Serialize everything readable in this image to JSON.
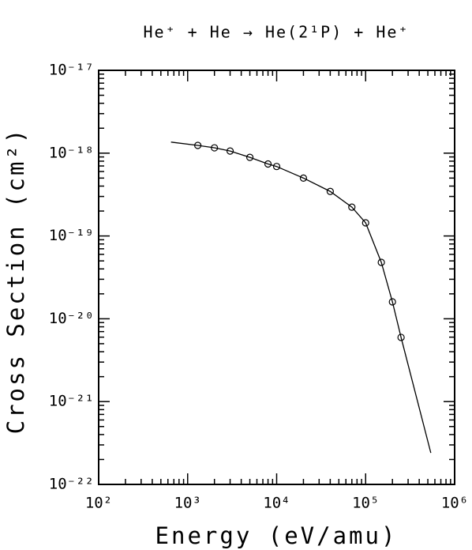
{
  "chart_data": {
    "type": "line",
    "title": "He⁺ + He → He(2¹P) + He⁺",
    "x_label": "Energy (eV/amu)",
    "y_label": "Cross Section (cm²)",
    "log_x": true,
    "log_y": true,
    "minor_ticks": true,
    "xlim": [
      100,
      1000000
    ],
    "ylim": [
      1e-22,
      1e-17
    ],
    "xticks": [
      {
        "value": 100,
        "label": "10²"
      },
      {
        "value": 1000,
        "label": "10³"
      },
      {
        "value": 10000,
        "label": "10⁴"
      },
      {
        "value": 100000,
        "label": "10⁵"
      },
      {
        "value": 1000000,
        "label": "10⁶"
      }
    ],
    "yticks": [
      {
        "value": 1e-22,
        "label": "10⁻²²"
      },
      {
        "value": 1e-21,
        "label": "10⁻²¹"
      },
      {
        "value": 1e-20,
        "label": "10⁻²⁰"
      },
      {
        "value": 1e-19,
        "label": "10⁻¹⁹"
      },
      {
        "value": 1e-18,
        "label": "10⁻¹⁸"
      },
      {
        "value": 1e-17,
        "label": "10⁻¹⁷"
      }
    ],
    "series": [
      {
        "color": "#000000",
        "marker": "none",
        "x": [
          650,
          1300,
          2000,
          3000,
          5000,
          8000,
          10000,
          20000,
          40000,
          70000,
          100000,
          150000,
          200000,
          250000,
          540000
        ],
        "values": [
          1.36e-18,
          1.24e-18,
          1.16e-18,
          1.06e-18,
          8.9e-19,
          7.4e-19,
          6.9e-19,
          5e-19,
          3.45e-19,
          2.23e-19,
          1.44e-19,
          4.8e-20,
          1.6e-20,
          5.96e-21,
          2.4e-22
        ]
      },
      {
        "color": "#000000",
        "marker": "circle",
        "x": [
          1300,
          2000,
          3000,
          5000,
          8000,
          10000,
          20000,
          40000,
          70000,
          100000,
          150000,
          200000,
          250000
        ],
        "values": [
          1.24e-18,
          1.16e-18,
          1.06e-18,
          8.9e-19,
          7.4e-19,
          6.9e-19,
          5e-19,
          3.45e-19,
          2.23e-19,
          1.44e-19,
          4.8e-20,
          1.6e-20,
          5.96e-21
        ]
      }
    ]
  }
}
